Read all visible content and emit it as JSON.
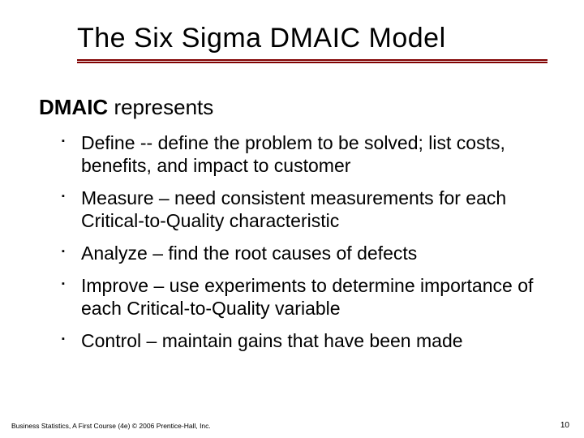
{
  "slide": {
    "title": "The Six Sigma DMAIC Model",
    "subtitle_bold": "DMAIC",
    "subtitle_rest": " represents",
    "bullets": [
      "Define --  define the problem to be solved; list costs, benefits, and impact to customer",
      "Measure – need consistent measurements for each Critical-to-Quality characteristic",
      "Analyze – find the root causes of defects",
      "Improve – use experiments to determine importance of each Critical-to-Quality variable",
      "Control – maintain gains that have been made"
    ],
    "footer": "Business Statistics, A First Course (4e) © 2006 Prentice-Hall, Inc.",
    "page_number": "10",
    "styling": {
      "background_color": "#ffffff",
      "title_color": "#000000",
      "title_fontsize": 34,
      "underline_color": "#800000",
      "underline_width": 580,
      "subtitle_fontsize": 26,
      "bullet_fontsize": 23,
      "bullet_marker": "▪",
      "footer_fontsize": 8.5,
      "pagenum_fontsize": 10,
      "font_family": "Arial"
    }
  }
}
